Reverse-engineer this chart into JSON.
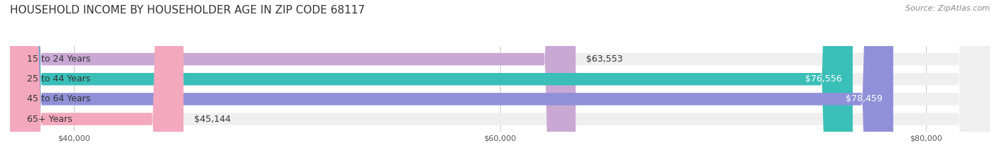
{
  "title": "HOUSEHOLD INCOME BY HOUSEHOLDER AGE IN ZIP CODE 68117",
  "source": "Source: ZipAtlas.com",
  "categories": [
    "15 to 24 Years",
    "25 to 44 Years",
    "45 to 64 Years",
    "65+ Years"
  ],
  "values": [
    63553,
    76556,
    78459,
    45144
  ],
  "labels": [
    "$63,553",
    "$76,556",
    "$78,459",
    "$45,144"
  ],
  "bar_colors": [
    "#c9a8d4",
    "#3abfb8",
    "#9090d8",
    "#f4a8be"
  ],
  "bar_bg_color": "#efefef",
  "background_color": "#ffffff",
  "xmin": 37000,
  "xmax": 83000,
  "xticks": [
    40000,
    60000,
    80000
  ],
  "xtick_labels": [
    "$40,000",
    "$60,000",
    "$80,000"
  ],
  "title_fontsize": 11,
  "source_fontsize": 8,
  "label_fontsize": 9,
  "category_fontsize": 9,
  "value_label_inside": [
    false,
    true,
    true,
    false
  ],
  "value_label_colors_inside": [
    "#333333",
    "#ffffff",
    "#ffffff",
    "#333333"
  ]
}
